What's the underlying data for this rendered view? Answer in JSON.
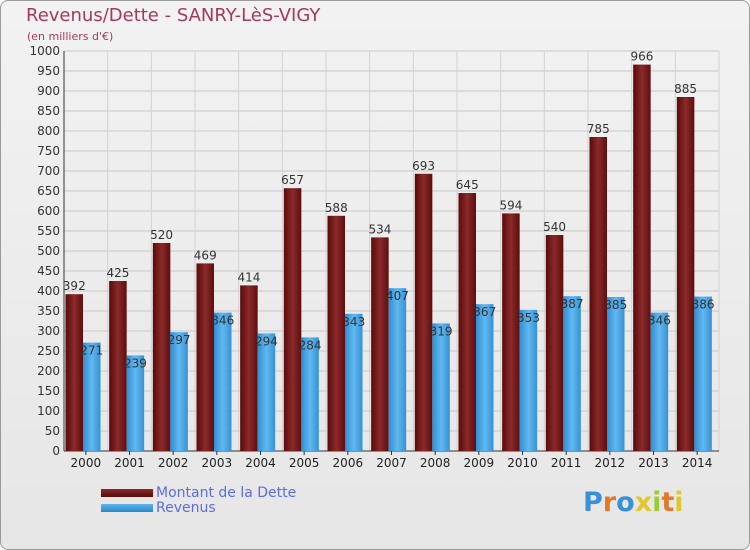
{
  "title": "Revenus/Dette - SANRY-LèS-VIGY",
  "subtitle": "(en milliers d'€)",
  "brand": "Proxiti",
  "brand_colors": [
    "#3a8fd8",
    "#e07a2a",
    "#3a8fd8",
    "#e0c82a",
    "#9acd32",
    "#e07a2a",
    "#e0c82a"
  ],
  "colors": {
    "dette": "#7a1e1e",
    "revenus": "#4aa3e3",
    "title": "#a33a5c",
    "legend_text": "#5c6de0"
  },
  "legend": {
    "dette": "Montant de la Dette",
    "revenus": "Revenus"
  },
  "chart_data": {
    "type": "bar",
    "title": "Revenus/Dette - SANRY-LèS-VIGY",
    "ylabel": "(en milliers d'€)",
    "ylim": [
      0,
      1000
    ],
    "yticks": [
      0,
      50,
      100,
      150,
      200,
      250,
      300,
      350,
      400,
      450,
      500,
      550,
      600,
      650,
      700,
      750,
      800,
      850,
      900,
      950,
      1000
    ],
    "grid": true,
    "legend_position": "bottom-left",
    "categories": [
      "2000",
      "2001",
      "2002",
      "2003",
      "2004",
      "2005",
      "2006",
      "2007",
      "2008",
      "2009",
      "2010",
      "2011",
      "2012",
      "2013",
      "2014"
    ],
    "series": [
      {
        "name": "Montant de la Dette",
        "values": [
          392,
          425,
          520,
          469,
          414,
          657,
          588,
          534,
          693,
          645,
          594,
          540,
          785,
          966,
          885
        ]
      },
      {
        "name": "Revenus",
        "values": [
          271,
          239,
          297,
          346,
          294,
          284,
          343,
          407,
          319,
          367,
          353,
          387,
          385,
          346,
          386
        ]
      }
    ]
  }
}
